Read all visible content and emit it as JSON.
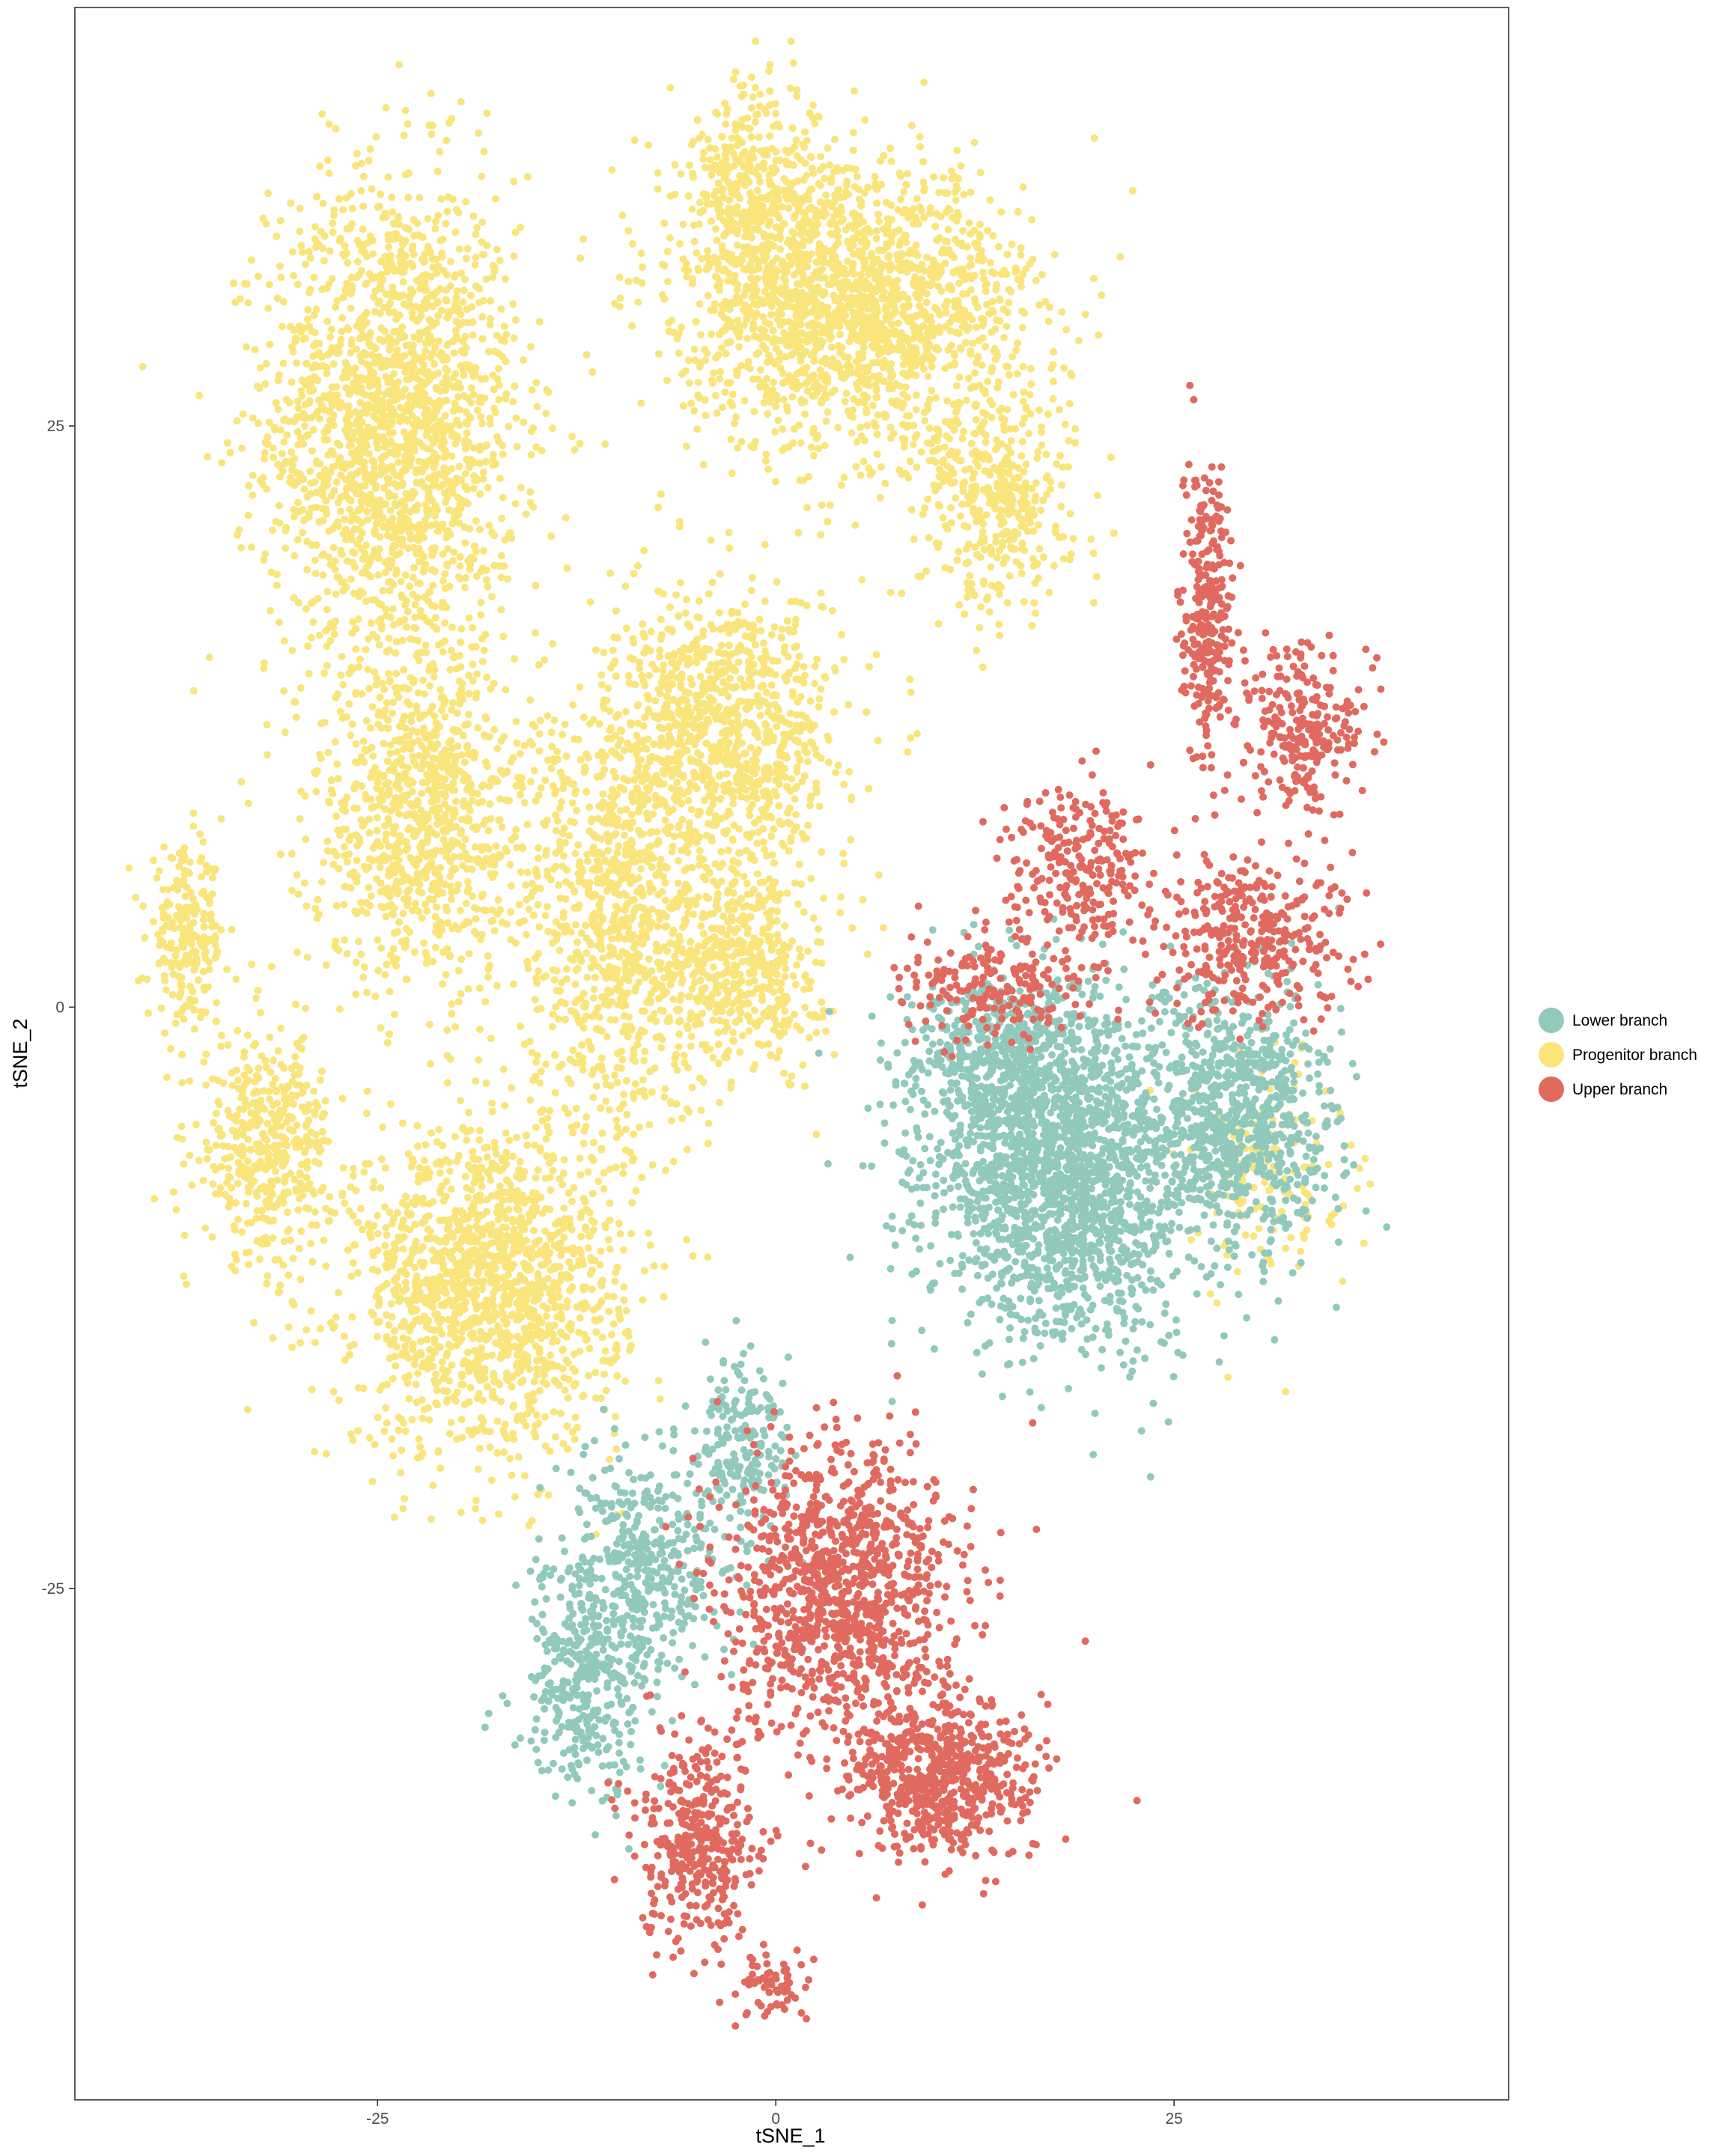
{
  "chart_data": {
    "type": "scatter",
    "xlabel": "tSNE_1",
    "ylabel": "tSNE_2",
    "xlim": [
      -44,
      46
    ],
    "ylim": [
      -47,
      43
    ],
    "xticks": [
      -25,
      0,
      25
    ],
    "yticks": [
      25,
      0,
      -25
    ],
    "grid": false,
    "legend_position": "right",
    "colors": {
      "Lower branch": "#91c9bc",
      "Progenitor branch": "#f9e57b",
      "Upper branch": "#e06a5f"
    },
    "series": [
      {
        "name": "Progenitor branch",
        "color": "#f9e57b",
        "clusters": [
          {
            "x": -24,
            "y": 25,
            "sx": 6.5,
            "sy": 9,
            "n": 1900
          },
          {
            "x": -22,
            "y": 8,
            "sx": 6,
            "sy": 6,
            "n": 900
          },
          {
            "x": -37,
            "y": 3,
            "sx": 2,
            "sy": 3,
            "n": 220
          },
          {
            "x": -32,
            "y": -6,
            "sx": 3.5,
            "sy": 4,
            "n": 450
          },
          {
            "x": -18,
            "y": -12,
            "sx": 7,
            "sy": 6,
            "n": 1500
          },
          {
            "x": -10,
            "y": 4,
            "sx": 5,
            "sy": 8,
            "n": 900
          },
          {
            "x": -3,
            "y": 12,
            "sx": 6,
            "sy": 5,
            "n": 900
          },
          {
            "x": -2,
            "y": 2,
            "sx": 4,
            "sy": 4,
            "n": 500
          },
          {
            "x": -1,
            "y": 35,
            "sx": 4,
            "sy": 4,
            "n": 400
          },
          {
            "x": 5,
            "y": 30,
            "sx": 9,
            "sy": 5,
            "n": 1700
          },
          {
            "x": 14,
            "y": 22,
            "sx": 4,
            "sy": 4,
            "n": 400
          },
          {
            "x": 31,
            "y": -7,
            "sx": 4,
            "sy": 4,
            "n": 150
          }
        ]
      },
      {
        "name": "Lower branch",
        "color": "#91c9bc",
        "clusters": [
          {
            "x": 18,
            "y": -7,
            "sx": 7,
            "sy": 6,
            "n": 1900
          },
          {
            "x": 29,
            "y": -5,
            "sx": 5,
            "sy": 5,
            "n": 800
          },
          {
            "x": 14,
            "y": -2,
            "sx": 5,
            "sy": 3,
            "n": 400
          },
          {
            "x": -12,
            "y": -29,
            "sx": 3.5,
            "sy": 4,
            "n": 350
          },
          {
            "x": -8,
            "y": -24,
            "sx": 4,
            "sy": 4,
            "n": 400
          },
          {
            "x": -2,
            "y": -19,
            "sx": 2.5,
            "sy": 3,
            "n": 200
          }
        ]
      },
      {
        "name": "Upper branch",
        "color": "#e06a5f",
        "clusters": [
          {
            "x": 27,
            "y": 17,
            "sx": 1.3,
            "sy": 5,
            "n": 280
          },
          {
            "x": 33,
            "y": 12,
            "sx": 3,
            "sy": 3,
            "n": 250
          },
          {
            "x": 19,
            "y": 6,
            "sx": 4,
            "sy": 3,
            "n": 250
          },
          {
            "x": 30,
            "y": 3,
            "sx": 5,
            "sy": 3,
            "n": 350
          },
          {
            "x": 14,
            "y": 1,
            "sx": 5,
            "sy": 2,
            "n": 200
          },
          {
            "x": 4,
            "y": -25,
            "sx": 6,
            "sy": 5,
            "n": 1100
          },
          {
            "x": 10,
            "y": -33,
            "sx": 5,
            "sy": 3,
            "n": 650
          },
          {
            "x": -5,
            "y": -36,
            "sx": 3,
            "sy": 4,
            "n": 400
          },
          {
            "x": 0,
            "y": -42,
            "sx": 2,
            "sy": 1.2,
            "n": 60
          }
        ]
      }
    ],
    "legend": [
      "Lower branch",
      "Progenitor branch",
      "Upper branch"
    ]
  }
}
